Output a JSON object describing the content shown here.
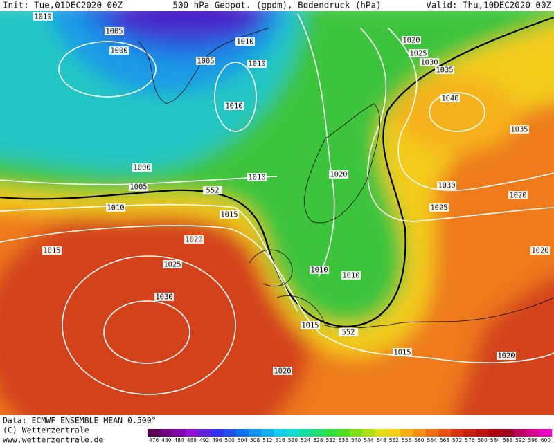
{
  "header": {
    "init": "Init: Tue,01DEC2020 00Z",
    "title": "500 hPa Geopot. (gpdm), Bodendruck (hPa)",
    "valid": "Valid: Thu,10DEC2020 00Z"
  },
  "contour_labels": [
    1010,
    1005,
    1000,
    1005,
    1010,
    1010,
    1010,
    1020,
    1025,
    1030,
    1035,
    1040,
    1035,
    1000,
    1005,
    1010,
    552,
    1010,
    1020,
    1030,
    1020,
    1025,
    1015,
    1020,
    1015,
    1025,
    1020,
    1010,
    1010,
    1030,
    1015,
    552,
    1015,
    1020,
    1020
  ],
  "footer": {
    "data_source": "Data: ECMWF ENSEMBLE MEAN 0.500°",
    "copyright": "(C) Wetterzentrale",
    "url": "www.wetterzentrale.de"
  },
  "colorbar": {
    "labels": [
      476,
      480,
      484,
      488,
      492,
      496,
      500,
      504,
      508,
      512,
      516,
      520,
      524,
      528,
      532,
      536,
      540,
      544,
      548,
      552,
      556,
      560,
      564,
      568,
      572,
      576,
      580,
      584,
      588,
      592,
      596,
      600
    ],
    "colors": [
      "#5a0050",
      "#700080",
      "#8000b0",
      "#9010d8",
      "#6020e0",
      "#3030f0",
      "#2050f0",
      "#1070f0",
      "#1090f0",
      "#10b0f0",
      "#10d0f0",
      "#10e0d0",
      "#10e0a0",
      "#20e070",
      "#30e040",
      "#50e020",
      "#80e010",
      "#b0e010",
      "#e0e010",
      "#f8d010",
      "#f8b010",
      "#f89010",
      "#f07010",
      "#e85010",
      "#e03010",
      "#d02010",
      "#c01010",
      "#b00010",
      "#a00020",
      "#c00060",
      "#e00090",
      "#f000c0"
    ]
  }
}
